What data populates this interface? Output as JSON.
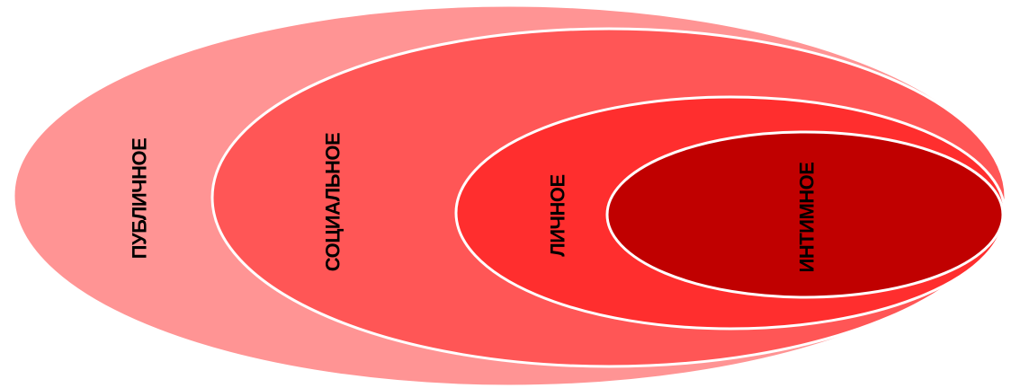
{
  "diagram": {
    "zones": [
      {
        "label": "ПУБЛИЧНОЕ",
        "color": "#ff9494"
      },
      {
        "label": "СОЦИАЛЬНОЕ",
        "color": "#ff5656"
      },
      {
        "label": "ЛИЧНОЕ",
        "color": "#ff2e2e"
      },
      {
        "label": "ИНТИМНОЕ",
        "color": "#c00000"
      }
    ],
    "outline_color": "#ffffff"
  }
}
